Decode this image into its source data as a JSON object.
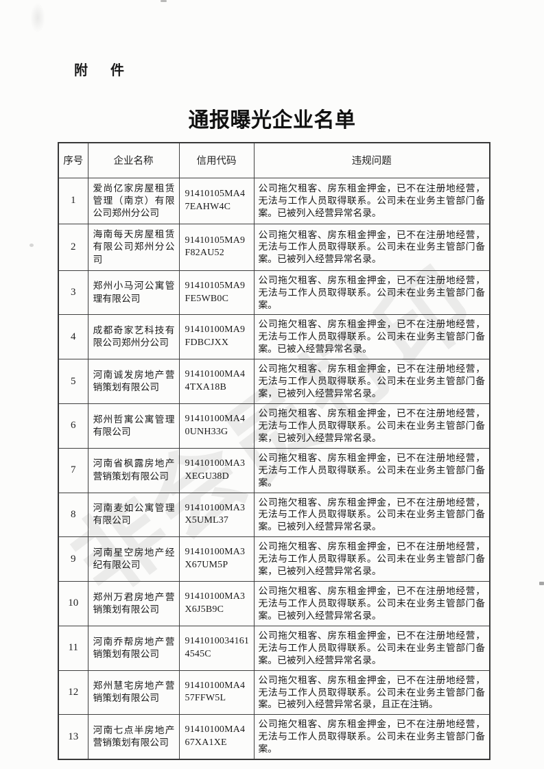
{
  "page": {
    "attachment_label": "附  件",
    "title": "通报曝光企业名单",
    "watermark": "非会员打印"
  },
  "colors": {
    "ink": "#1c1c1c",
    "table_border": "#3f3f3f",
    "watermark_gray": "rgba(90,90,90,0.10)"
  },
  "table": {
    "headers": {
      "no": "序号",
      "name": "企业名称",
      "code": "信用代码",
      "issue": "违规问题"
    },
    "rows": [
      {
        "no": "1",
        "name": "爱尚亿家房屋租赁管理（南京）有限公司郑州分公司",
        "code": "91410105MA47EAHW4C",
        "issue": "公司拖欠租客、房东租金押金，已不在注册地经营，无法与工作人员取得联系。公司未在业务主管部门备案。已被列入经营异常名录。"
      },
      {
        "no": "2",
        "name": "海南每天房屋租赁有限公司郑州分公司",
        "code": "91410105MA9F82AU52",
        "issue": "公司拖欠租客、房东租金押金，已不在注册地经营，无法与工作人员取得联系。公司未在业务主管部门备案。已被列入经营异常名录。"
      },
      {
        "no": "3",
        "name": "郑州小马河公寓管理有限公司",
        "code": "91410105MA9FE5WB0C",
        "issue": "公司拖欠租客、房东租金押金，已不在注册地经营，无法与工作人员取得联系。公司未在业务主管部门备案。"
      },
      {
        "no": "4",
        "name": "成都奇家艺科技有限公司郑州分公司",
        "code": "91410100MA9FDBCJXX",
        "issue": "公司拖欠租客、房东租金押金，已不在注册地经营，无法与工作人员取得联系。公司未在业务主管部门备案。已被入经营异常名录。"
      },
      {
        "no": "5",
        "name": "河南诚发房地产营销策划有限公司",
        "code": "91410100MA44TXA18B",
        "issue": "公司拖欠租客、房东租金押金，已不在注册地经营，无法与工作人员取得联系。公司未在业务主管部门备案，已被列入经营异常名录。"
      },
      {
        "no": "6",
        "name": "郑州哲寓公寓管理有限公司",
        "code": "91410100MA40UNH33G",
        "issue": "公司拖欠租客、房东租金押金，已不在注册地经营，无法与工作人员取得联系。公司未在业务主管部门备案，已被列入经营异常名录。"
      },
      {
        "no": "7",
        "name": "河南省枫露房地产营销策划有限公司",
        "code": "91410100MA3XEGU38D",
        "issue": "公司拖欠租客、房东租金押金，已不在注册地经营，无法与工作人员取得联系。公司未在业务主管部门备案。"
      },
      {
        "no": "8",
        "name": "河南麦如公寓管理有限公司",
        "code": "91410100MA3X5UML37",
        "issue": "公司拖欠租客、房东租金押金，已不在注册地经营，无法与工作人员取得联系。公司未在业务主管部门备案。已被列入经营异常名录。"
      },
      {
        "no": "9",
        "name": "河南星空房地产经纪有限公司",
        "code": "91410100MA3X67UM5P",
        "issue": "公司拖欠租客、房东租金押金，已不在注册地经营，无法与工作人员取得联系。公司未在业务主管部门备案，已被列入经营异常名录。"
      },
      {
        "no": "10",
        "name": "郑州万君房地产营销策划有限公司",
        "code": "91410100MA3X6J5B9C",
        "issue": "公司拖欠租客、房东租金押金，已不在注册地经营，无法与工作人员取得联系。公司未在业务主管部门备案。已被列入经营异常名录。"
      },
      {
        "no": "11",
        "name": "河南乔帮房地产营销策划有限公司",
        "code": "91410100341614545C",
        "issue": "公司拖欠租客、房东租金押金，已不在注册地经营，无法与工作人员取得联系。公司未在业务主管部门备案。已被列入经营异常名录。"
      },
      {
        "no": "12",
        "name": "郑州慧宅房地产营销策划有限公司",
        "code": "91410100MA457FFW5L",
        "issue": "公司拖欠租客、房东租金押金，已不在注册地经营，无法与工作人员取得联系。公司未在业务主管部门备案。已被列入经营异常名录，且正在注销。"
      },
      {
        "no": "13",
        "name": "河南七点半房地产营销策划有限公司",
        "code": "91410100MA467XA1XE",
        "issue": "公司拖欠租客、房东租金押金，已不在注册地经营，无法与工作人员取得联系。公司未在业务主管部门备案。"
      }
    ]
  }
}
